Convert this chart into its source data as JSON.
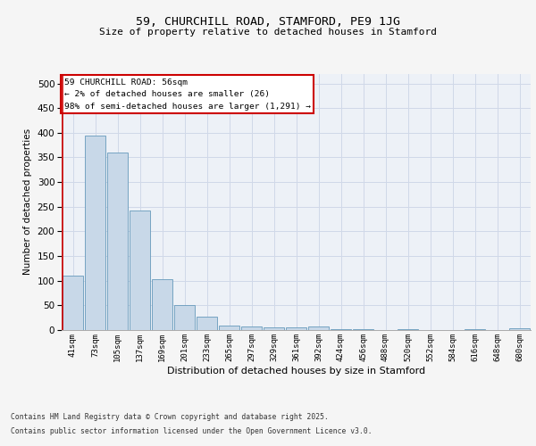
{
  "title": "59, CHURCHILL ROAD, STAMFORD, PE9 1JG",
  "subtitle": "Size of property relative to detached houses in Stamford",
  "xlabel": "Distribution of detached houses by size in Stamford",
  "ylabel": "Number of detached properties",
  "categories": [
    "41sqm",
    "73sqm",
    "105sqm",
    "137sqm",
    "169sqm",
    "201sqm",
    "233sqm",
    "265sqm",
    "297sqm",
    "329sqm",
    "361sqm",
    "392sqm",
    "424sqm",
    "456sqm",
    "488sqm",
    "520sqm",
    "552sqm",
    "584sqm",
    "616sqm",
    "648sqm",
    "680sqm"
  ],
  "values": [
    110,
    395,
    360,
    242,
    104,
    50,
    28,
    9,
    8,
    6,
    6,
    7,
    1,
    1,
    0,
    2,
    0,
    0,
    1,
    0,
    3
  ],
  "bar_color": "#c8d8e8",
  "bar_edge_color": "#6699bb",
  "ylim": [
    0,
    520
  ],
  "yticks": [
    0,
    50,
    100,
    150,
    200,
    250,
    300,
    350,
    400,
    450,
    500
  ],
  "property_bin_index": 0,
  "annotation_title": "59 CHURCHILL ROAD: 56sqm",
  "annotation_line1": "← 2% of detached houses are smaller (26)",
  "annotation_line2": "98% of semi-detached houses are larger (1,291) →",
  "annotation_box_color": "#ffffff",
  "annotation_box_edge": "#cc0000",
  "vline_color": "#cc0000",
  "grid_color": "#d0d8e8",
  "background_color": "#edf1f7",
  "footer_line1": "Contains HM Land Registry data © Crown copyright and database right 2025.",
  "footer_line2": "Contains public sector information licensed under the Open Government Licence v3.0."
}
